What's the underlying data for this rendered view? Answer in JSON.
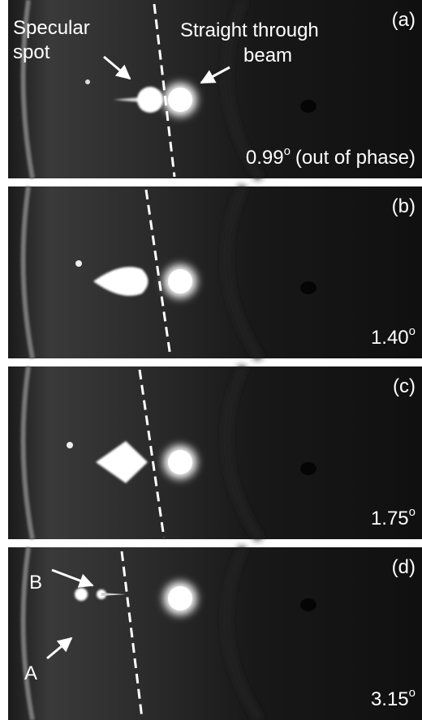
{
  "panels": [
    {
      "label": "(a)",
      "angle": "0.99",
      "angle_sup": "o",
      "note": "(out of phase)"
    },
    {
      "label": "(b)",
      "angle": "1.40",
      "angle_sup": "o"
    },
    {
      "label": "(c)",
      "angle": "1.75",
      "angle_sup": "o"
    },
    {
      "label": "(d)",
      "angle": "3.15",
      "angle_sup": "o"
    }
  ],
  "annotations": {
    "specular": [
      "Specular",
      "spot"
    ],
    "straight": [
      "Straight through",
      "beam"
    ],
    "A": "A",
    "B": "B"
  }
}
